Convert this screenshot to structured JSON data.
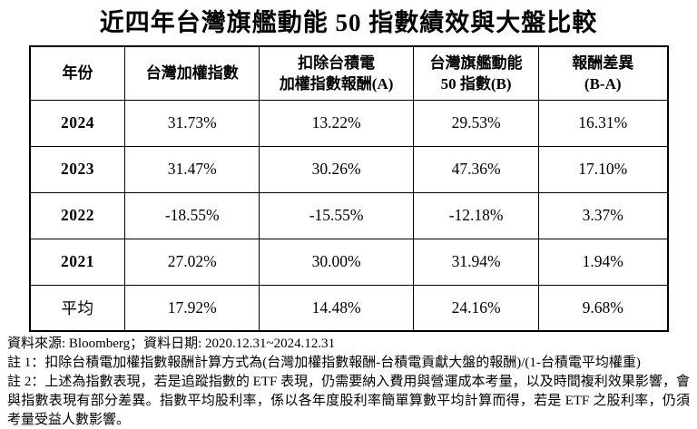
{
  "title": "近四年台灣旗艦動能 50 指數績效與大盤比較",
  "table": {
    "header": [
      [
        "年份"
      ],
      [
        "台灣加權指數"
      ],
      [
        "扣除台積電",
        "加權指數報酬(A)"
      ],
      [
        "台灣旗艦動能",
        "50 指數(B)"
      ],
      [
        "報酬差異",
        "(B-A)"
      ]
    ],
    "rows": [
      [
        "2024",
        "31.73%",
        "13.22%",
        "29.53%",
        "16.31%"
      ],
      [
        "2023",
        "31.47%",
        "30.26%",
        "47.36%",
        "17.10%"
      ],
      [
        "2022",
        "-18.55%",
        "-15.55%",
        "-12.18%",
        "3.37%"
      ],
      [
        "2021",
        "27.02%",
        "30.00%",
        "31.94%",
        "1.94%"
      ],
      [
        "平均",
        "17.92%",
        "14.48%",
        "24.16%",
        "9.68%"
      ]
    ]
  },
  "notes": {
    "source": "資料來源: Bloomberg；資料日期: 2020.12.31~2024.12.31",
    "note1": "註 1：扣除台積電加權指數報酬計算方式為(台灣加權指數報酬-台積電貢獻大盤的報酬)/(1-台積電平均權重)",
    "note2": "註 2：上述為指數表現，若是追蹤指數的 ETF 表現，仍需要納入費用與營運成本考量，以及時間複利效果影響，會與指數表現有部分差異。指數平均股利率，係以各年度股利率簡單算數平均計算而得，若是 ETF 之股利率，仍須考量受益人數影響。"
  }
}
